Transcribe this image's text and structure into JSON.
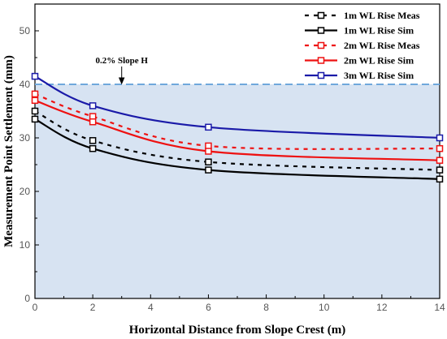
{
  "chart_data": {
    "type": "line",
    "title": "",
    "xlabel": "Horizontal Distance from Slope Crest (m)",
    "ylabel": "Measurement Point Settlement (mm)",
    "xlim": [
      0,
      14
    ],
    "ylim": [
      0,
      55
    ],
    "xticks": [
      "0",
      "2",
      "4",
      "6",
      "8",
      "10",
      "12",
      "14"
    ],
    "yticks": [
      "0",
      "10",
      "20",
      "30",
      "40",
      "50"
    ],
    "grid": false,
    "legend_position": "top-right",
    "x": [
      0,
      2,
      6,
      14
    ],
    "series": [
      {
        "name": "1m WL Rise Meas",
        "values": [
          35.0,
          29.5,
          25.5,
          24.0
        ],
        "color": "#000000",
        "style": "dashed",
        "marker": "square-open"
      },
      {
        "name": "1m WL Rise Sim",
        "values": [
          33.5,
          28.0,
          24.0,
          22.3
        ],
        "color": "#000000",
        "style": "solid",
        "marker": "square-open"
      },
      {
        "name": "2m WL Rise Meas",
        "values": [
          38.2,
          34.0,
          28.5,
          28.0
        ],
        "color": "#ee1111",
        "style": "dashed",
        "marker": "square-open"
      },
      {
        "name": "2m WL Rise Sim",
        "values": [
          37.0,
          33.0,
          27.5,
          25.8
        ],
        "color": "#ee1111",
        "style": "solid",
        "marker": "square-open"
      },
      {
        "name": "3m WL Rise Sim",
        "values": [
          41.5,
          36.0,
          32.0,
          30.0
        ],
        "color": "#1a1aa8",
        "style": "solid",
        "marker": "square-open"
      }
    ],
    "reference_line": {
      "label": "0.2% Slope H",
      "y": 40.0,
      "color": "#6fa8dc",
      "arrow_x": 3
    },
    "shaded_region_color": "#d7e3f2"
  }
}
